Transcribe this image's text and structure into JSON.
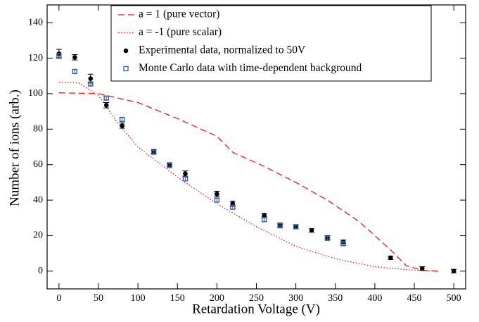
{
  "chart_data": {
    "type": "scatter",
    "xlabel": "Retardation Voltage (V)",
    "ylabel": "Number of ions (arb.)",
    "xlim": [
      -15,
      515
    ],
    "ylim": [
      -10,
      150
    ],
    "xticks": [
      0,
      50,
      100,
      150,
      200,
      250,
      300,
      350,
      400,
      450,
      500
    ],
    "yticks": [
      0,
      20,
      40,
      60,
      80,
      100,
      120,
      140
    ],
    "legend": "top",
    "series": [
      {
        "name": "a = 1 (pure vector)",
        "color": "#e0201b",
        "style": "dashed",
        "x": [
          0,
          50,
          100,
          150,
          200,
          220,
          260,
          300,
          340,
          380,
          420,
          440,
          460,
          480
        ],
        "values": [
          100.5,
          100,
          95,
          86,
          76,
          67,
          59,
          50,
          40,
          28,
          12,
          3,
          0.5,
          0
        ]
      },
      {
        "name": "a = -1 (pure scalar)",
        "color": "#e0201b",
        "style": "dotted",
        "x": [
          0,
          25,
          50,
          75,
          100,
          150,
          200,
          250,
          300,
          350,
          400,
          450,
          480
        ],
        "values": [
          106.5,
          106,
          99,
          83,
          70,
          53,
          38,
          25,
          14,
          7,
          2.5,
          0.5,
          0
        ]
      },
      {
        "name": "Experimental data, normalized to 50V",
        "color": "#000000",
        "style": "circle",
        "x": [
          0,
          20,
          40,
          60,
          80,
          120,
          140,
          160,
          200,
          220,
          260,
          280,
          300,
          320,
          340,
          360,
          420,
          460,
          500
        ],
        "values": [
          122.5,
          120.5,
          108.5,
          93.5,
          82,
          67.5,
          60,
          55,
          43.5,
          38,
          31.5,
          25.5,
          25,
          23,
          19,
          16.5,
          7.5,
          1.5,
          0
        ],
        "errors": [
          2.5,
          1.5,
          2.5,
          1.5,
          1.5,
          1,
          1,
          1.5,
          1.5,
          1.5,
          1,
          1,
          1,
          1,
          1,
          1,
          1,
          1,
          1
        ]
      },
      {
        "name": "Monte Carlo data with time-dependent background",
        "color": "#3b5eab",
        "style": "square",
        "x": [
          0,
          20,
          40,
          60,
          80,
          120,
          140,
          160,
          200,
          220,
          260,
          280,
          300,
          340,
          360
        ],
        "values": [
          121.5,
          112.5,
          105.5,
          97.5,
          85.5,
          67,
          59.5,
          52,
          40,
          36,
          29,
          26,
          25,
          18.5,
          15.5
        ],
        "errors": [
          1,
          1,
          1,
          1,
          1,
          1,
          1,
          1,
          1,
          1,
          1,
          1,
          1,
          1,
          1
        ]
      }
    ]
  }
}
